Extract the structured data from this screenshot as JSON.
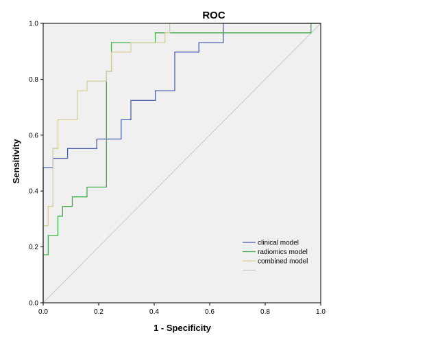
{
  "chart_data": {
    "type": "line",
    "title": "ROC",
    "xlabel": "1 - Specificity",
    "ylabel": "Sensitivity",
    "xlim": [
      0,
      1
    ],
    "ylim": [
      0,
      1
    ],
    "x_ticks": [
      "0.0",
      "0.2",
      "0.4",
      "0.6",
      "0.8",
      "1.0"
    ],
    "y_ticks": [
      "0.0",
      "0.2",
      "0.4",
      "0.6",
      "0.8",
      "1.0"
    ],
    "legend_position": "bottom-right",
    "series": [
      {
        "name": "clinical  model",
        "color": "#4a5fa8",
        "points": [
          [
            0,
            0
          ],
          [
            0,
            0.483
          ],
          [
            0.035,
            0.483
          ],
          [
            0.035,
            0.517
          ],
          [
            0.088,
            0.517
          ],
          [
            0.088,
            0.552
          ],
          [
            0.193,
            0.552
          ],
          [
            0.193,
            0.586
          ],
          [
            0.281,
            0.586
          ],
          [
            0.281,
            0.655
          ],
          [
            0.316,
            0.655
          ],
          [
            0.316,
            0.724
          ],
          [
            0.404,
            0.724
          ],
          [
            0.404,
            0.759
          ],
          [
            0.474,
            0.759
          ],
          [
            0.474,
            0.897
          ],
          [
            0.561,
            0.897
          ],
          [
            0.561,
            0.931
          ],
          [
            0.649,
            0.931
          ],
          [
            0.649,
            1
          ],
          [
            1,
            1
          ]
        ]
      },
      {
        "name": "radiomics model",
        "color": "#3fae49",
        "points": [
          [
            0,
            0
          ],
          [
            0,
            0.172
          ],
          [
            0.018,
            0.172
          ],
          [
            0.018,
            0.241
          ],
          [
            0.053,
            0.241
          ],
          [
            0.053,
            0.31
          ],
          [
            0.07,
            0.31
          ],
          [
            0.07,
            0.345
          ],
          [
            0.105,
            0.345
          ],
          [
            0.105,
            0.379
          ],
          [
            0.158,
            0.379
          ],
          [
            0.158,
            0.414
          ],
          [
            0.228,
            0.414
          ],
          [
            0.228,
            0.828
          ],
          [
            0.246,
            0.828
          ],
          [
            0.246,
            0.931
          ],
          [
            0.404,
            0.931
          ],
          [
            0.404,
            0.966
          ],
          [
            0.965,
            0.966
          ],
          [
            0.965,
            1
          ],
          [
            1,
            1
          ]
        ]
      },
      {
        "name": "combined model",
        "color": "#d6cf9c",
        "points": [
          [
            0,
            0
          ],
          [
            0,
            0.276
          ],
          [
            0.018,
            0.276
          ],
          [
            0.018,
            0.345
          ],
          [
            0.035,
            0.345
          ],
          [
            0.035,
            0.552
          ],
          [
            0.053,
            0.552
          ],
          [
            0.053,
            0.655
          ],
          [
            0.123,
            0.655
          ],
          [
            0.123,
            0.759
          ],
          [
            0.158,
            0.759
          ],
          [
            0.158,
            0.793
          ],
          [
            0.228,
            0.793
          ],
          [
            0.228,
            0.828
          ],
          [
            0.246,
            0.828
          ],
          [
            0.246,
            0.897
          ],
          [
            0.316,
            0.897
          ],
          [
            0.316,
            0.931
          ],
          [
            0.439,
            0.931
          ],
          [
            0.439,
            0.966
          ],
          [
            0.456,
            0.966
          ],
          [
            0.456,
            1
          ],
          [
            1,
            1
          ]
        ]
      },
      {
        "name": "",
        "color": "#c8c8c8",
        "points": [
          [
            0,
            0
          ],
          [
            1,
            1
          ]
        ]
      }
    ]
  }
}
